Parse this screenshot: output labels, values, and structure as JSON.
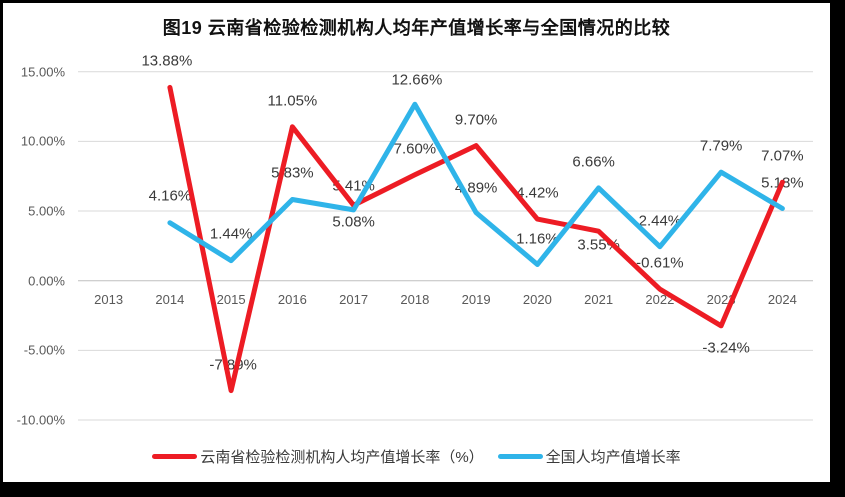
{
  "title": "图19  云南省检验检测机构人均年产值增长率与全国情况的比较",
  "colors": {
    "frame_background": "#000000",
    "canvas_background": "#ffffff",
    "gridline": "#d9d9d9",
    "zero_line": "#bfbfbf",
    "axis_text": "#595959",
    "data_label_text": "#3a3a3a"
  },
  "chart_data": {
    "type": "line",
    "categories": [
      "2013",
      "2014",
      "2015",
      "2016",
      "2017",
      "2018",
      "2019",
      "2020",
      "2021",
      "2022",
      "2023",
      "2024"
    ],
    "series": [
      {
        "name": "云南省检验检测机构人均产值增长率（%）",
        "color": "#ed1c24",
        "values": [
          null,
          13.88,
          -7.89,
          11.05,
          5.41,
          7.6,
          9.7,
          4.42,
          3.55,
          -0.61,
          -3.24,
          7.07
        ],
        "labels": [
          null,
          "13.88%",
          "-7.89%",
          "11.05%",
          "5.41%",
          "7.60%",
          "9.70%",
          "4.42%",
          "3.55%",
          "-0.61%",
          "-3.24%",
          "7.07%"
        ],
        "label_dy": [
          0,
          -26,
          -26,
          -26,
          -19,
          -26,
          -26,
          -26,
          14,
          -26,
          22,
          -26
        ],
        "label_dx": [
          0,
          -3,
          2,
          0,
          0,
          0,
          0,
          0,
          0,
          0,
          5,
          0
        ]
      },
      {
        "name": "全国人均产值增长率",
        "color": "#2fb4e9",
        "values": [
          null,
          4.16,
          1.44,
          5.83,
          5.08,
          12.66,
          4.89,
          1.16,
          6.66,
          2.44,
          7.79,
          5.18
        ],
        "labels": [
          null,
          "4.16%",
          "1.44%",
          "5.83%",
          "5.08%",
          "12.66%",
          "4.89%",
          "1.16%",
          "6.66%",
          "2.44%",
          "7.79%",
          "5.18%"
        ],
        "label_dy": [
          0,
          -27,
          -27,
          -26,
          12,
          -24,
          -25,
          -26,
          -26,
          -26,
          -26,
          -26
        ],
        "label_dx": [
          0,
          0,
          0,
          0,
          0,
          2,
          0,
          0,
          -5,
          0,
          0,
          0
        ]
      }
    ],
    "yticks": [
      15,
      10,
      5,
      0,
      -5,
      -10
    ],
    "ytick_labels": [
      "15.00%",
      "10.00%",
      "5.00%",
      "0.00%",
      "-5.00%",
      "-10.00%"
    ],
    "ylim": [
      -10,
      15
    ],
    "grid": true,
    "legend_position": "bottom"
  }
}
